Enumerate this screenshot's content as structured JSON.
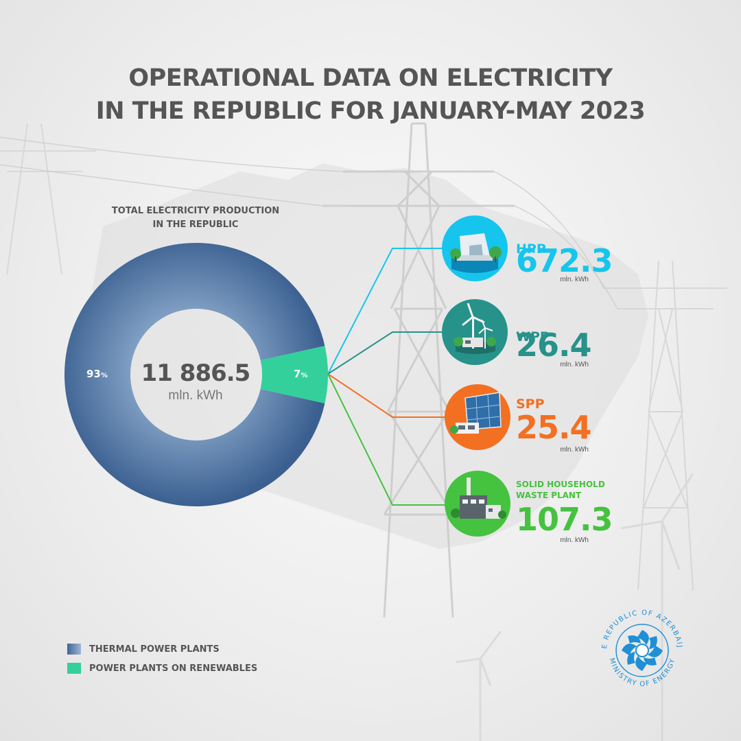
{
  "title": {
    "line1": "OPERATIONAL DATA ON ELECTRICITY",
    "line2": "IN THE REPUBLIC FOR JANUARY-MAY 2023"
  },
  "total": {
    "label_line1": "TOTAL ELECTRICITY PRODUCTION",
    "label_line2": "IN THE REPUBLIC",
    "value": "11 886.5",
    "unit": "mln. kWh"
  },
  "chart_data": {
    "type": "pie",
    "categories": [
      "THERMAL POWER PLANTS",
      "POWER PLANTS ON RENEWABLES"
    ],
    "values": [
      93,
      7
    ],
    "value_labels": [
      "93",
      "7"
    ],
    "value_suffix": "%",
    "colors": [
      "#3e6597",
      "#33d09c"
    ],
    "legend_placement": "bottom-left",
    "renewables_breakdown": [
      {
        "name": "HPP",
        "value": 672.3,
        "unit": "mln. kWh",
        "color": "#16c5ed"
      },
      {
        "name": "WPP",
        "value": 26.4,
        "unit": "mln. kWh",
        "color": "#26928a"
      },
      {
        "name": "SPP",
        "value": 25.4,
        "unit": "mln. kWh",
        "color": "#f37022"
      },
      {
        "name": "SOLID HOUSEHOLD WASTE PLANT",
        "value": 107.3,
        "unit": "mln. kWh",
        "color": "#45c23f"
      }
    ]
  },
  "items": [
    {
      "name": "HPP",
      "value": "672.3",
      "unit": "mln. kWh",
      "color": "#16c5ed",
      "icon": "hydro-dam-icon"
    },
    {
      "name": "WPP",
      "value": "26.4",
      "unit": "mln. kWh",
      "color": "#26928a",
      "icon": "wind-turbine-icon"
    },
    {
      "name": "SPP",
      "value": "25.4",
      "unit": "mln. kWh",
      "color": "#f37022",
      "icon": "solar-panel-icon"
    },
    {
      "name_line1": "SOLID HOUSEHOLD",
      "name_line2": "WASTE PLANT",
      "value": "107.3",
      "unit": "mln. kWh",
      "color": "#45c23f",
      "icon": "waste-plant-icon"
    }
  ],
  "legend": [
    {
      "label": "THERMAL POWER PLANTS",
      "color": "#3e6597"
    },
    {
      "label": "POWER PLANTS ON RENEWABLES",
      "color": "#33d09c"
    }
  ],
  "logo": {
    "top_text": "THE REPUBLIC OF AZERBAIJAN",
    "bottom_text": "MINISTRY OF ENERGY",
    "color": "#1f8fd6"
  }
}
